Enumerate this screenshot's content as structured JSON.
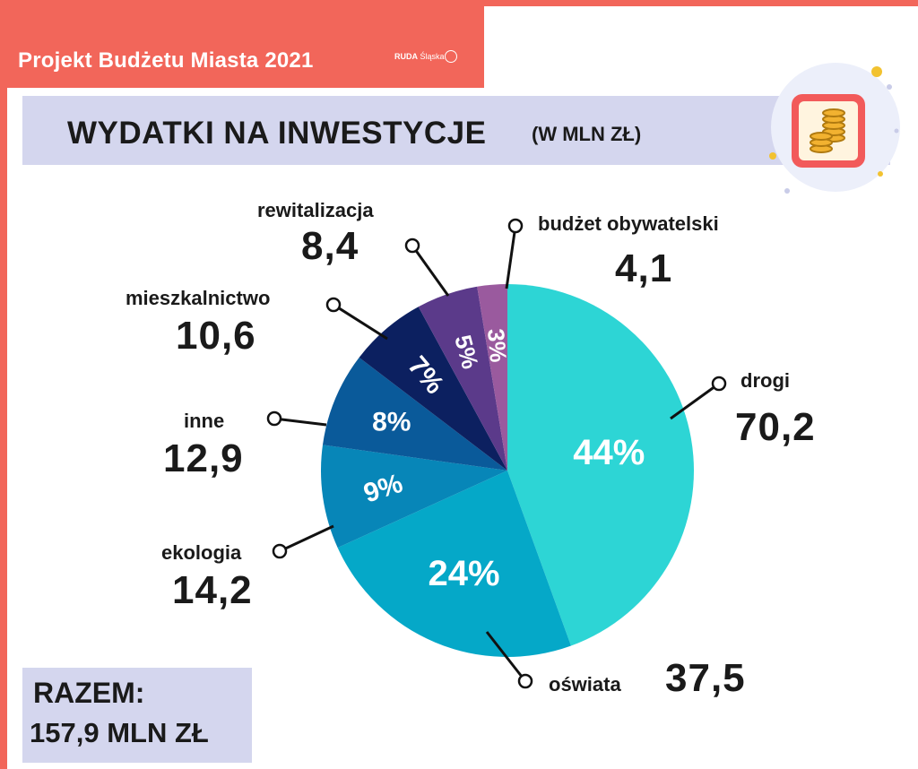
{
  "header": {
    "title": "Projekt Budżetu Miasta 2021",
    "logo_strong": "RUDA",
    "logo_rest": " Śląska"
  },
  "heading": {
    "main": "WYDATKI NA INWESTYCJE",
    "sub": "(W MLN ZŁ)"
  },
  "total": {
    "label": "RAZEM:",
    "value": "157,9 MLN ZŁ"
  },
  "icons": {
    "badge": "coins-icon"
  },
  "colors": {
    "frame": "#f2665a",
    "band": "#d4d6ee",
    "drogi": "#2dd5d5",
    "oswiata": "#05a8c8",
    "ekologia": "#0786b8",
    "inne": "#0a5a9a",
    "mieszkalnictwo": "#0c2060",
    "rewitalizacja": "#5b3a8a",
    "budzet": "#9a5a9e"
  },
  "chart_data": {
    "type": "pie",
    "title": "WYDATKI NA INWESTYCJE",
    "subtitle": "(W MLN ZŁ)",
    "unit": "mln zł",
    "slices": [
      {
        "name": "drogi",
        "value": 70.2,
        "value_label": "70,2",
        "percent_label": "44%",
        "color": "#2dd5d5"
      },
      {
        "name": "oświata",
        "value": 37.5,
        "value_label": "37,5",
        "percent_label": "24%",
        "color": "#05a8c8"
      },
      {
        "name": "ekologia",
        "value": 14.2,
        "value_label": "14,2",
        "percent_label": "9%",
        "color": "#0786b8"
      },
      {
        "name": "inne",
        "value": 12.9,
        "value_label": "12,9",
        "percent_label": "8%",
        "color": "#0a5a9a"
      },
      {
        "name": "mieszkalnictwo",
        "value": 10.6,
        "value_label": "10,6",
        "percent_label": "7%",
        "color": "#0c2060"
      },
      {
        "name": "rewitalizacja",
        "value": 8.4,
        "value_label": "8,4",
        "percent_label": "5%",
        "color": "#5b3a8a"
      },
      {
        "name": "budżet obywatelski",
        "value": 4.1,
        "value_label": "4,1",
        "percent_label": "3%",
        "color": "#9a5a9e"
      }
    ],
    "total": 157.9
  }
}
